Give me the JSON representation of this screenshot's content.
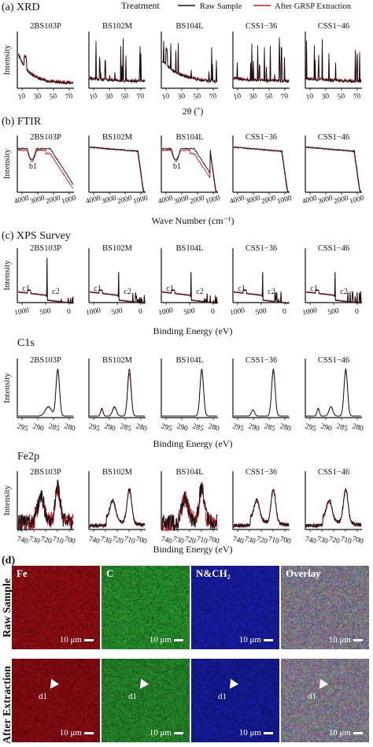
{
  "colors": {
    "raw": "#111111",
    "after": "#e0141c",
    "fe": "#b3141a",
    "c": "#2ea02e",
    "n": "#1a1fb0"
  },
  "legend": {
    "title": "Treatment",
    "raw": "Raw Sample",
    "after": "After GRSP Extraction"
  },
  "samples": [
    "2BS103P",
    "BS102M",
    "BS104L",
    "CSS1−36",
    "CSS1−46"
  ],
  "sections": {
    "xrd": {
      "label": "(a) XRD",
      "ylabel": "Intensity",
      "xlabel": "2θ (˚)",
      "ticks": [
        "10",
        "30",
        "50",
        "70"
      ]
    },
    "ftir": {
      "label": "(b) FTIR",
      "ylabel": "Intensity",
      "xlabel": "Wave Number (cm⁻¹)",
      "ticks": [
        "4000",
        "3000",
        "2000",
        "1000"
      ],
      "annotation": "b1"
    },
    "xps": {
      "label": "(c) XPS Survey",
      "ylabel": "Intensity",
      "xlabel": "Binding Energy (eV)",
      "ticks": [
        "1000",
        "500",
        "0"
      ],
      "annotations": [
        "c1",
        "c2"
      ]
    },
    "c1s": {
      "label": "C1s",
      "ylabel": "Intensity",
      "xlabel": "Binding Energy (eV)",
      "ticks": [
        "295",
        "290",
        "285",
        "280"
      ]
    },
    "fe2p": {
      "label": "Fe2p",
      "ylabel": "Intensity",
      "xlabel": "Binding Energy (eV)",
      "ticks": [
        "740",
        "730",
        "720",
        "710",
        "700"
      ]
    }
  },
  "chart_data": [
    {
      "type": "line",
      "title": "(a) XRD",
      "xlabel": "2θ (˚)",
      "ylabel": "Intensity",
      "xlim": [
        5,
        80
      ],
      "series": [
        {
          "name": "Raw Sample"
        },
        {
          "name": "After GRSP Extraction"
        }
      ],
      "panels": [
        "2BS103P",
        "BS102M",
        "BS104L",
        "CSS1−36",
        "CSS1−46"
      ]
    },
    {
      "type": "line",
      "title": "(b) FTIR",
      "xlabel": "Wave Number (cm⁻¹)",
      "ylabel": "Intensity",
      "xlim": [
        4000,
        400
      ],
      "series": [
        {
          "name": "Raw Sample"
        },
        {
          "name": "After GRSP Extraction"
        }
      ],
      "panels": [
        "2BS103P",
        "BS102M",
        "BS104L",
        "CSS1−36",
        "CSS1−46"
      ]
    },
    {
      "type": "line",
      "title": "(c) XPS Survey",
      "xlabel": "Binding Energy (eV)",
      "ylabel": "Intensity",
      "xlim": [
        1300,
        0
      ],
      "series": [
        {
          "name": "Raw Sample"
        },
        {
          "name": "After GRSP Extraction"
        }
      ],
      "panels": [
        "2BS103P",
        "BS102M",
        "BS104L",
        "CSS1−36",
        "CSS1−46"
      ]
    },
    {
      "type": "line",
      "title": "C1s",
      "xlabel": "Binding Energy (eV)",
      "ylabel": "Intensity",
      "xlim": [
        297,
        279
      ],
      "peak_center": 284.8,
      "series": [
        {
          "name": "Raw Sample"
        },
        {
          "name": "After GRSP Extraction"
        }
      ],
      "panels": [
        "2BS103P",
        "BS102M",
        "BS104L",
        "CSS1−36",
        "CSS1−46"
      ]
    },
    {
      "type": "line",
      "title": "Fe2p",
      "xlabel": "Binding Energy (eV)",
      "ylabel": "Intensity",
      "xlim": [
        742,
        698
      ],
      "peaks": [
        711,
        724
      ],
      "series": [
        {
          "name": "Raw Sample"
        },
        {
          "name": "After GRSP Extraction"
        }
      ],
      "panels": [
        "2BS103P",
        "BS102M",
        "BS104L",
        "CSS1−36",
        "CSS1−46"
      ]
    }
  ],
  "micro": {
    "label": "(d)",
    "channels": [
      "Fe",
      "C",
      "N&CH₂",
      "Overlay"
    ],
    "rows": [
      "Raw Sample",
      "After Extraction"
    ],
    "scale": "10 μm",
    "marker": "d1"
  }
}
